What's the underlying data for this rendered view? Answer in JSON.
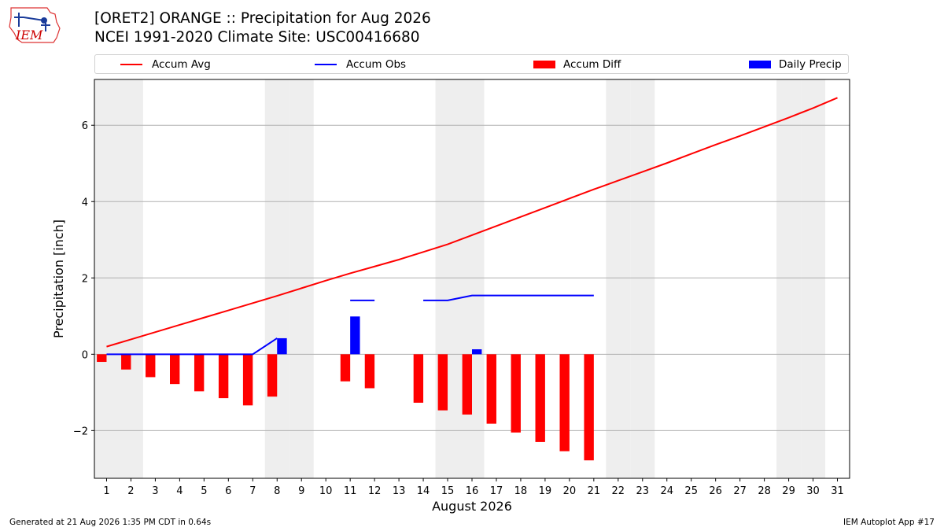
{
  "header": {
    "logo_text": "IEM",
    "title": "[ORET2] ORANGE :: Precipitation for Aug 2026",
    "subtitle": "NCEI 1991-2020 Climate Site: USC00416680"
  },
  "footer": {
    "generated": "Generated at 21 Aug 2026 1:35 PM CDT in 0.64s",
    "app": "IEM Autoplot App #17"
  },
  "colors": {
    "avg": "#ff0000",
    "obs": "#0000ff",
    "diff": "#ff0000",
    "daily": "#0000ff",
    "weekend": "#eeeeee",
    "grid": "#b0b0b0"
  },
  "chart_data": {
    "type": "bar",
    "title": "[ORET2] ORANGE :: Precipitation for Aug 2026",
    "subtitle": "NCEI 1991-2020 Climate Site: USC00416680",
    "xlabel": "August 2026",
    "ylabel": "Precipitation [inch]",
    "ylim": [
      -3.25,
      7.2
    ],
    "xlim": [
      0.5,
      31.5
    ],
    "yticks": [
      -2,
      0,
      2,
      4,
      6
    ],
    "ytick_labels": [
      "−2",
      "0",
      "2",
      "4",
      "6"
    ],
    "categories": [
      "1",
      "2",
      "3",
      "4",
      "5",
      "6",
      "7",
      "8",
      "9",
      "10",
      "11",
      "12",
      "13",
      "14",
      "15",
      "16",
      "17",
      "18",
      "19",
      "20",
      "21",
      "22",
      "23",
      "24",
      "25",
      "26",
      "27",
      "28",
      "29",
      "30",
      "31"
    ],
    "grid": "horizontal",
    "legend_position": "top",
    "legend": [
      "Accum Avg",
      "Accum Obs",
      "Accum Diff",
      "Daily Precip"
    ],
    "weekend_days": [
      1,
      2,
      8,
      9,
      15,
      16,
      22,
      23,
      29,
      30
    ],
    "series": [
      {
        "name": "Accum Avg",
        "kind": "line",
        "x": [
          1,
          2,
          3,
          4,
          5,
          6,
          7,
          8,
          9,
          10,
          11,
          12,
          13,
          14,
          15,
          16,
          17,
          18,
          19,
          20,
          21,
          22,
          23,
          24,
          25,
          26,
          27,
          28,
          29,
          30,
          31
        ],
        "values": [
          0.2,
          0.39,
          0.58,
          0.77,
          0.96,
          1.15,
          1.34,
          1.53,
          1.73,
          1.93,
          2.12,
          2.3,
          2.48,
          2.68,
          2.88,
          3.12,
          3.36,
          3.6,
          3.84,
          4.08,
          4.32,
          4.55,
          4.78,
          5.01,
          5.25,
          5.49,
          5.72,
          5.96,
          6.2,
          6.45,
          6.72
        ]
      },
      {
        "name": "Accum Obs",
        "kind": "line",
        "segments": [
          {
            "x": [
              1,
              2,
              3,
              4,
              5,
              6,
              7,
              8
            ],
            "values": [
              0,
              0,
              0,
              0,
              0,
              0,
              0,
              0.42
            ]
          },
          {
            "x": [
              11,
              12
            ],
            "values": [
              1.41,
              1.41
            ]
          },
          {
            "x": [
              14,
              15,
              16,
              17,
              18,
              19,
              20,
              21
            ],
            "values": [
              1.41,
              1.41,
              1.54,
              1.54,
              1.54,
              1.54,
              1.54,
              1.54
            ]
          }
        ]
      },
      {
        "name": "Accum Diff",
        "kind": "bar",
        "x": [
          1,
          2,
          3,
          4,
          5,
          6,
          7,
          8,
          11,
          12,
          14,
          15,
          16,
          17,
          18,
          19,
          20,
          21
        ],
        "values": [
          -0.2,
          -0.4,
          -0.6,
          -0.78,
          -0.97,
          -1.15,
          -1.34,
          -1.11,
          -0.71,
          -0.89,
          -1.27,
          -1.47,
          -1.58,
          -1.82,
          -2.05,
          -2.3,
          -2.54,
          -2.78
        ]
      },
      {
        "name": "Daily Precip",
        "kind": "bar",
        "x": [
          8,
          11,
          16
        ],
        "values": [
          0.42,
          0.99,
          0.13
        ]
      }
    ]
  }
}
